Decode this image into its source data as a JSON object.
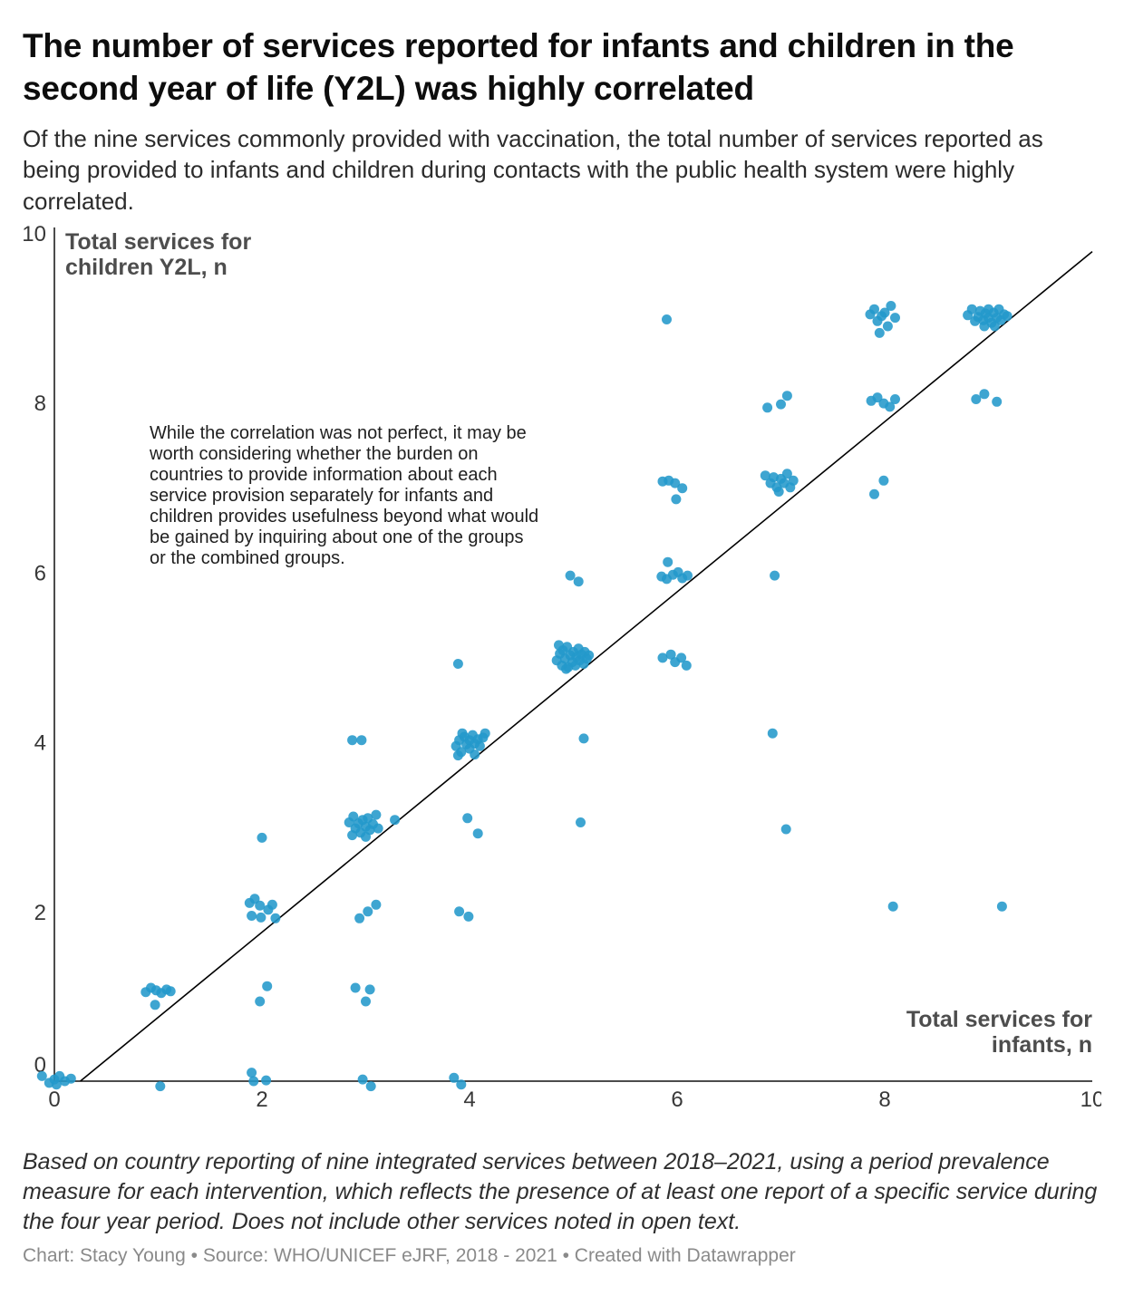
{
  "header": {
    "title": "The number of services reported for infants and children in the second year of life (Y2L) was highly correlated",
    "subtitle": "Of the nine services commonly provided with vaccination, the total number of services reported as being provided to infants and children during contacts with the public health system were highly correlated."
  },
  "chart_data": {
    "type": "scatter",
    "title": "The number of services reported for infants and children in the second year of life (Y2L) was highly correlated",
    "xlabel": "Total services for infants, n",
    "ylabel": "Total services for children Y2L, n",
    "x_label_lines": [
      "Total services for",
      "infants, n"
    ],
    "y_label_lines": [
      "Total services for",
      "children Y2L, n"
    ],
    "xlim": [
      0,
      10
    ],
    "ylim": [
      0,
      10
    ],
    "x_ticks": [
      0,
      2,
      4,
      6,
      8,
      10
    ],
    "y_ticks": [
      0,
      2,
      4,
      6,
      8,
      10
    ],
    "grid": false,
    "point_color": "#2398cb",
    "line_color": "#000000",
    "annotation": "While the correlation was not perfect, it may be worth considering whether the burden on countries to provide information about each service provision separately for infants and children provides usefulness beyond what would be gained by inquiring about one of the groups or the combined groups.",
    "trend_line": {
      "x1": 0.25,
      "y1": 0,
      "x2": 10,
      "y2": 9.78
    },
    "points": [
      [
        -0.12,
        0.06
      ],
      [
        0,
        0.02
      ],
      [
        0.05,
        0.06
      ],
      [
        0.1,
        0
      ],
      [
        0.02,
        -0.04
      ],
      [
        0.16,
        0.03
      ],
      [
        -0.05,
        -0.02
      ],
      [
        0.88,
        1.05
      ],
      [
        0.93,
        1.1
      ],
      [
        0.98,
        1.07
      ],
      [
        1.03,
        1.04
      ],
      [
        1.08,
        1.08
      ],
      [
        0.97,
        0.9
      ],
      [
        1.12,
        1.06
      ],
      [
        1.02,
        -0.06
      ],
      [
        1.88,
        2.1
      ],
      [
        1.93,
        2.15
      ],
      [
        1.98,
        2.07
      ],
      [
        1.9,
        1.95
      ],
      [
        1.99,
        1.93
      ],
      [
        2.06,
        2.02
      ],
      [
        2.1,
        2.08
      ],
      [
        2.13,
        1.92
      ],
      [
        2,
        2.87
      ],
      [
        2.05,
        1.12
      ],
      [
        1.98,
        0.94
      ],
      [
        1.9,
        0.1
      ],
      [
        1.92,
        0
      ],
      [
        2.04,
        0.01
      ],
      [
        2.84,
        3.05
      ],
      [
        2.88,
        3.12
      ],
      [
        2.9,
        2.98
      ],
      [
        2.93,
        3.04
      ],
      [
        2.95,
        2.93
      ],
      [
        2.97,
        3.08
      ],
      [
        3,
        3
      ],
      [
        3.02,
        3.1
      ],
      [
        3.04,
        2.96
      ],
      [
        3.07,
        3.03
      ],
      [
        3.1,
        3.14
      ],
      [
        3.12,
        2.98
      ],
      [
        2.87,
        2.9
      ],
      [
        3,
        2.88
      ],
      [
        3.28,
        3.08
      ],
      [
        2.87,
        4.02
      ],
      [
        2.96,
        4.02
      ],
      [
        2.94,
        1.92
      ],
      [
        3.02,
        2
      ],
      [
        3.1,
        2.08
      ],
      [
        2.9,
        1.1
      ],
      [
        3.04,
        1.08
      ],
      [
        3,
        0.94
      ],
      [
        2.97,
        0.02
      ],
      [
        3.05,
        -0.06
      ],
      [
        3.87,
        3.95
      ],
      [
        3.9,
        4.02
      ],
      [
        3.92,
        3.88
      ],
      [
        3.95,
        4.06
      ],
      [
        3.97,
        3.97
      ],
      [
        4,
        4.02
      ],
      [
        4,
        3.92
      ],
      [
        4.03,
        4.08
      ],
      [
        4.05,
        3.98
      ],
      [
        4.08,
        4.03
      ],
      [
        4.1,
        3.95
      ],
      [
        4.13,
        4.05
      ],
      [
        3.89,
        3.84
      ],
      [
        4.15,
        4.1
      ],
      [
        4.05,
        3.85
      ],
      [
        3.93,
        4.1
      ],
      [
        3.89,
        4.92
      ],
      [
        3.98,
        3.1
      ],
      [
        4.08,
        2.92
      ],
      [
        3.9,
        2
      ],
      [
        3.99,
        1.94
      ],
      [
        3.85,
        0.04
      ],
      [
        3.92,
        -0.04
      ],
      [
        4.84,
        4.96
      ],
      [
        4.87,
        5.04
      ],
      [
        4.89,
        4.9
      ],
      [
        4.9,
        5.08
      ],
      [
        4.92,
        4.98
      ],
      [
        4.94,
        5.12
      ],
      [
        4.95,
        4.88
      ],
      [
        4.97,
        5.02
      ],
      [
        4.99,
        4.94
      ],
      [
        5,
        5.06
      ],
      [
        5.02,
        4.9
      ],
      [
        5.03,
        5
      ],
      [
        5.05,
        5.1
      ],
      [
        5.06,
        4.96
      ],
      [
        5.08,
        5.03
      ],
      [
        5.1,
        4.92
      ],
      [
        5.11,
        5.06
      ],
      [
        5.13,
        4.98
      ],
      [
        4.86,
        5.14
      ],
      [
        5.15,
        5.02
      ],
      [
        4.93,
        4.86
      ],
      [
        4.97,
        5.96
      ],
      [
        5.05,
        5.89
      ],
      [
        5.1,
        4.04
      ],
      [
        5.07,
        3.05
      ],
      [
        5.9,
        8.98
      ],
      [
        5.86,
        7.07
      ],
      [
        5.92,
        7.08
      ],
      [
        5.98,
        7.05
      ],
      [
        6.05,
        6.99
      ],
      [
        5.99,
        6.86
      ],
      [
        5.91,
        6.12
      ],
      [
        5.85,
        5.95
      ],
      [
        5.9,
        5.92
      ],
      [
        5.96,
        5.97
      ],
      [
        6.01,
        6
      ],
      [
        6.05,
        5.93
      ],
      [
        6.1,
        5.96
      ],
      [
        5.86,
        4.99
      ],
      [
        5.94,
        5.03
      ],
      [
        5.98,
        4.94
      ],
      [
        6.04,
        4.99
      ],
      [
        6.09,
        4.9
      ],
      [
        6.87,
        7.94
      ],
      [
        7,
        7.98
      ],
      [
        7.06,
        8.08
      ],
      [
        6.85,
        7.14
      ],
      [
        6.9,
        7.05
      ],
      [
        6.93,
        7.12
      ],
      [
        6.96,
        7
      ],
      [
        7,
        7.1
      ],
      [
        7.03,
        7.05
      ],
      [
        7.06,
        7.16
      ],
      [
        7.09,
        7
      ],
      [
        7.12,
        7.08
      ],
      [
        6.98,
        6.95
      ],
      [
        6.94,
        5.96
      ],
      [
        6.92,
        4.1
      ],
      [
        7.05,
        2.97
      ],
      [
        7.86,
        9.04
      ],
      [
        7.9,
        9.1
      ],
      [
        7.93,
        8.96
      ],
      [
        7.97,
        9.02
      ],
      [
        8,
        9.06
      ],
      [
        8.03,
        8.9
      ],
      [
        8.06,
        9.14
      ],
      [
        8.1,
        9
      ],
      [
        7.95,
        8.82
      ],
      [
        7.87,
        8.02
      ],
      [
        7.93,
        8.06
      ],
      [
        7.99,
        7.99
      ],
      [
        8.05,
        7.95
      ],
      [
        8.1,
        8.04
      ],
      [
        7.99,
        7.08
      ],
      [
        7.9,
        6.92
      ],
      [
        8.08,
        2.06
      ],
      [
        8.8,
        9.03
      ],
      [
        8.84,
        9.1
      ],
      [
        8.87,
        8.96
      ],
      [
        8.9,
        9.01
      ],
      [
        8.92,
        9.08
      ],
      [
        8.95,
        8.97
      ],
      [
        8.97,
        9.05
      ],
      [
        9,
        9
      ],
      [
        9,
        9.1
      ],
      [
        9.03,
        8.94
      ],
      [
        9.05,
        9.06
      ],
      [
        9.08,
        9
      ],
      [
        9.1,
        9.1
      ],
      [
        9.12,
        8.97
      ],
      [
        9.15,
        9.04
      ],
      [
        8.96,
        8.9
      ],
      [
        9.06,
        8.9
      ],
      [
        9.18,
        9.02
      ],
      [
        8.88,
        8.04
      ],
      [
        8.96,
        8.1
      ],
      [
        9.08,
        8.01
      ],
      [
        9.13,
        2.06
      ]
    ]
  },
  "footer": {
    "note": "Based on country reporting of nine integrated services between 2018–2021, using a period prevalence measure for each intervention, which reflects the presence of at least one report of a specific service during the four year period. Does not include other services noted in open text.",
    "credit": "Chart: Stacy Young • Source: WHO/UNICEF eJRF, 2018 - 2021 • Created with Datawrapper"
  }
}
